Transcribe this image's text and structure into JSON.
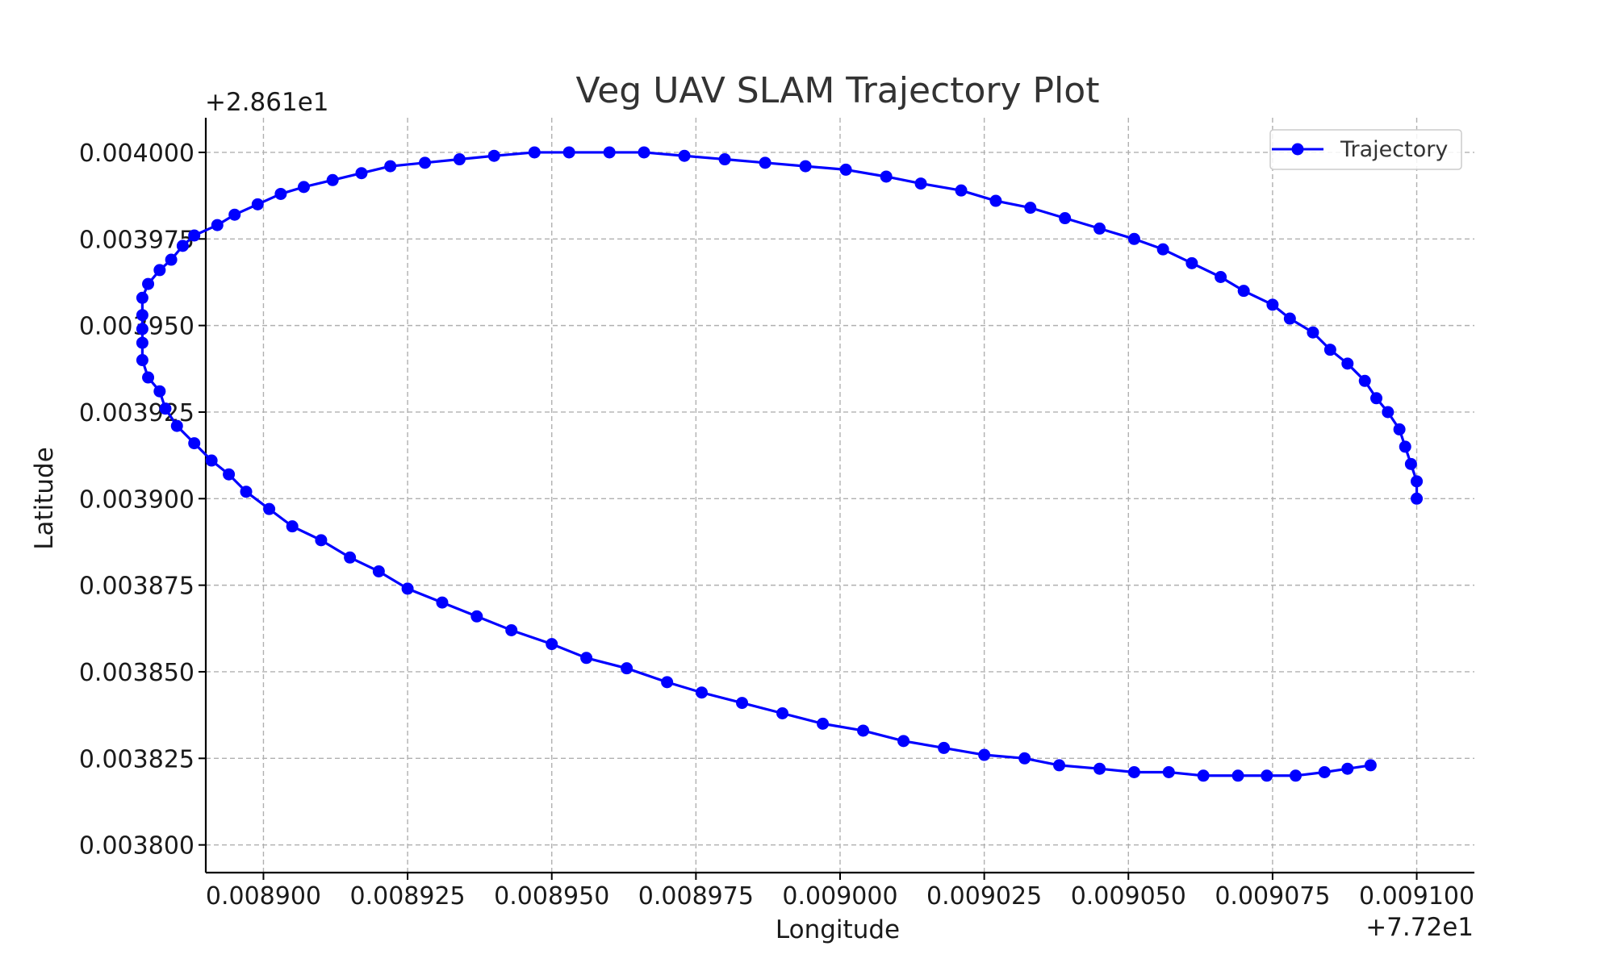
{
  "chart_data": {
    "type": "line",
    "title": "Veg UAV SLAM Trajectory Plot",
    "xlabel": "Longitude",
    "ylabel": "Latitude",
    "x_offset_label": "+7.72e1",
    "y_offset_label": "+2.861e1",
    "x_offset": 77.2,
    "y_offset": 28.61,
    "xlim": [
      0.00889,
      0.00911
    ],
    "ylim": [
      0.003792,
      0.00401
    ],
    "x_ticks": [
      0.0089,
      0.008925,
      0.00895,
      0.008975,
      0.009,
      0.009025,
      0.00905,
      0.009075,
      0.0091
    ],
    "x_tick_labels": [
      "0.008900",
      "0.008925",
      "0.008950",
      "0.008975",
      "0.009000",
      "0.009025",
      "0.009050",
      "0.009075",
      "0.009100"
    ],
    "y_ticks": [
      0.0038,
      0.003825,
      0.00385,
      0.003875,
      0.0039,
      0.003925,
      0.00395,
      0.003975,
      0.004
    ],
    "y_tick_labels": [
      "0.003800",
      "0.003825",
      "0.003850",
      "0.003875",
      "0.003900",
      "0.003925",
      "0.003950",
      "0.003975",
      "0.004000"
    ],
    "grid": true,
    "legend_position": "top-right",
    "series": [
      {
        "name": "Trajectory",
        "color": "#0000ff",
        "marker": "circle",
        "x": [
          0.0091,
          0.0091,
          0.009099,
          0.009098,
          0.009097,
          0.009095,
          0.009093,
          0.009091,
          0.009088,
          0.009085,
          0.009082,
          0.009078,
          0.009075,
          0.00907,
          0.009066,
          0.009061,
          0.009056,
          0.009051,
          0.009045,
          0.009039,
          0.009033,
          0.009027,
          0.009021,
          0.009014,
          0.009008,
          0.009001,
          0.008994,
          0.008987,
          0.00898,
          0.008973,
          0.008966,
          0.00896,
          0.008953,
          0.008947,
          0.00894,
          0.008934,
          0.008928,
          0.008922,
          0.008917,
          0.008912,
          0.008907,
          0.008903,
          0.008899,
          0.008895,
          0.008892,
          0.008888,
          0.008886,
          0.008884,
          0.008882,
          0.00888,
          0.008879,
          0.008879,
          0.008879,
          0.008879,
          0.008879,
          0.00888,
          0.008882,
          0.008883,
          0.008885,
          0.008888,
          0.008891,
          0.008894,
          0.008897,
          0.008901,
          0.008905,
          0.00891,
          0.008915,
          0.00892,
          0.008925,
          0.008931,
          0.008937,
          0.008943,
          0.00895,
          0.008956,
          0.008963,
          0.00897,
          0.008976,
          0.008983,
          0.00899,
          0.008997,
          0.009004,
          0.009011,
          0.009018,
          0.009025,
          0.009032,
          0.009038,
          0.009045,
          0.009051,
          0.009057,
          0.009063,
          0.009069,
          0.009074,
          0.009079,
          0.009084,
          0.009088,
          0.009092
        ],
        "y": [
          0.0039,
          0.003905,
          0.00391,
          0.003915,
          0.00392,
          0.003925,
          0.003929,
          0.003934,
          0.003939,
          0.003943,
          0.003948,
          0.003952,
          0.003956,
          0.00396,
          0.003964,
          0.003968,
          0.003972,
          0.003975,
          0.003978,
          0.003981,
          0.003984,
          0.003986,
          0.003989,
          0.003991,
          0.003993,
          0.003995,
          0.003996,
          0.003997,
          0.003998,
          0.003999,
          0.004,
          0.004,
          0.004,
          0.004,
          0.003999,
          0.003998,
          0.003997,
          0.003996,
          0.003994,
          0.003992,
          0.00399,
          0.003988,
          0.003985,
          0.003982,
          0.003979,
          0.003976,
          0.003973,
          0.003969,
          0.003966,
          0.003962,
          0.003958,
          0.003953,
          0.003949,
          0.003945,
          0.00394,
          0.003935,
          0.003931,
          0.003926,
          0.003921,
          0.003916,
          0.003911,
          0.003907,
          0.003902,
          0.003897,
          0.003892,
          0.003888,
          0.003883,
          0.003879,
          0.003874,
          0.00387,
          0.003866,
          0.003862,
          0.003858,
          0.003854,
          0.003851,
          0.003847,
          0.003844,
          0.003841,
          0.003838,
          0.003835,
          0.003833,
          0.00383,
          0.003828,
          0.003826,
          0.003825,
          0.003823,
          0.003822,
          0.003821,
          0.003821,
          0.00382,
          0.00382,
          0.00382,
          0.00382,
          0.003821,
          0.003822,
          0.003823
        ]
      }
    ]
  }
}
